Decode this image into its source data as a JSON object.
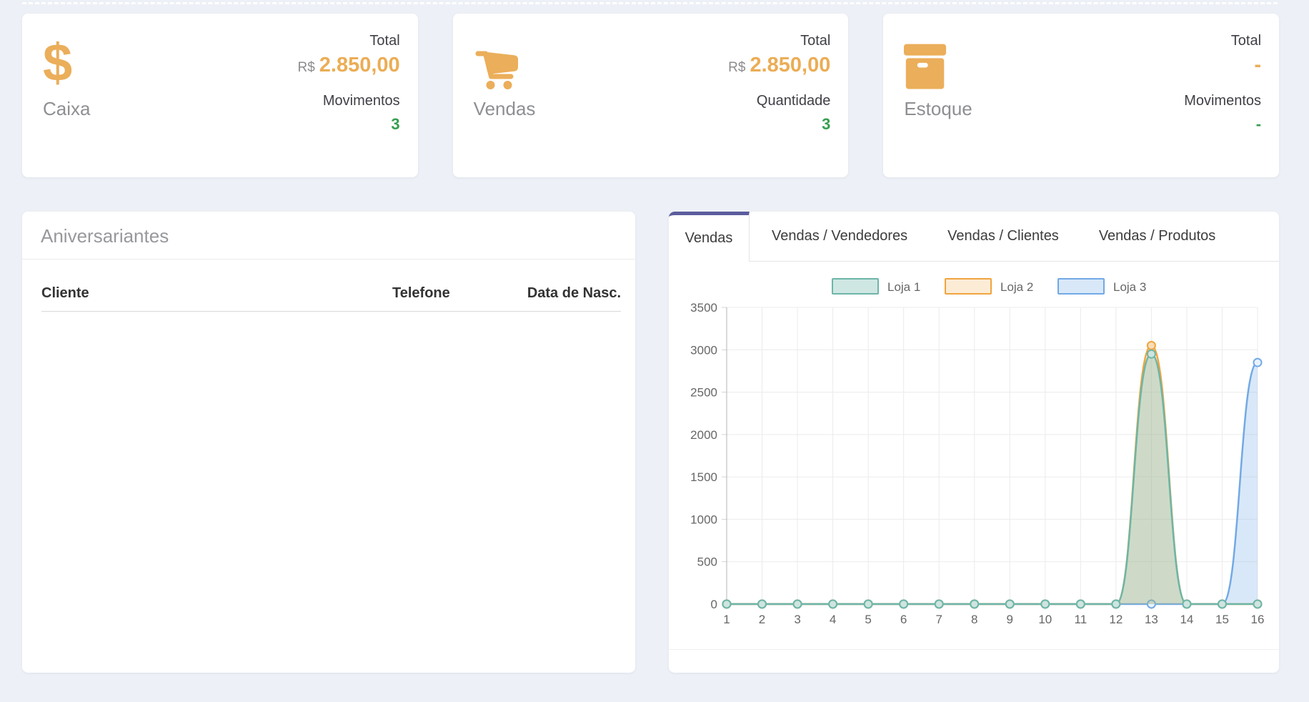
{
  "cards": [
    {
      "title": "Caixa",
      "icon": "dollar-icon",
      "stat1_label": "Total",
      "stat1_prefix": "R$",
      "stat1_value": "2.850,00",
      "stat2_label": "Movimentos",
      "stat2_value": "3"
    },
    {
      "title": "Vendas",
      "icon": "cart-icon",
      "stat1_label": "Total",
      "stat1_prefix": "R$",
      "stat1_value": "2.850,00",
      "stat2_label": "Quantidade",
      "stat2_value": "3"
    },
    {
      "title": "Estoque",
      "icon": "box-icon",
      "stat1_label": "Total",
      "stat1_prefix": "",
      "stat1_value": "-",
      "stat2_label": "Movimentos",
      "stat2_value": "-"
    }
  ],
  "colors": {
    "accent_orange": "#ebae5a",
    "accent_green": "#379e4f",
    "accent_purple": "#5c5c9e",
    "background": "#edf0f6"
  },
  "birthdays_panel": {
    "title": "Aniversariantes",
    "columns": [
      "Cliente",
      "Telefone",
      "Data de Nasc."
    ],
    "rows": []
  },
  "sales_panel": {
    "tabs": [
      {
        "label": "Vendas",
        "active": true
      },
      {
        "label": "Vendas / Vendedores",
        "active": false
      },
      {
        "label": "Vendas / Clientes",
        "active": false
      },
      {
        "label": "Vendas / Produtos",
        "active": false
      }
    ]
  },
  "chart_data": {
    "type": "line",
    "title": "",
    "xlabel": "",
    "ylabel": "",
    "x": [
      1,
      2,
      3,
      4,
      5,
      6,
      7,
      8,
      9,
      10,
      11,
      12,
      13,
      14,
      15,
      16
    ],
    "ylim": [
      0,
      3500
    ],
    "ytick_step": 500,
    "grid": true,
    "legend_position": "top",
    "series": [
      {
        "name": "Loja 1",
        "values": [
          0,
          0,
          0,
          0,
          0,
          0,
          0,
          0,
          0,
          0,
          0,
          0,
          2950,
          0,
          0,
          0
        ],
        "color": "#6cb6a8",
        "fill": "rgba(118,187,174,0.35)",
        "marker_fill": "#cfe4de"
      },
      {
        "name": "Loja 2",
        "values": [
          0,
          0,
          0,
          0,
          0,
          0,
          0,
          0,
          0,
          0,
          0,
          0,
          3050,
          0,
          0,
          0
        ],
        "color": "#f1a43f",
        "fill": "rgba(244,169,62,0.22)",
        "marker_fill": "#f9ddb7"
      },
      {
        "name": "Loja 3",
        "values": [
          0,
          0,
          0,
          0,
          0,
          0,
          0,
          0,
          0,
          0,
          0,
          0,
          0,
          0,
          0,
          2850
        ],
        "color": "#72a9e5",
        "fill": "rgba(129,178,233,0.30)",
        "marker_fill": "#e9f2fc"
      }
    ],
    "draw_order": [
      2,
      1,
      0
    ]
  }
}
